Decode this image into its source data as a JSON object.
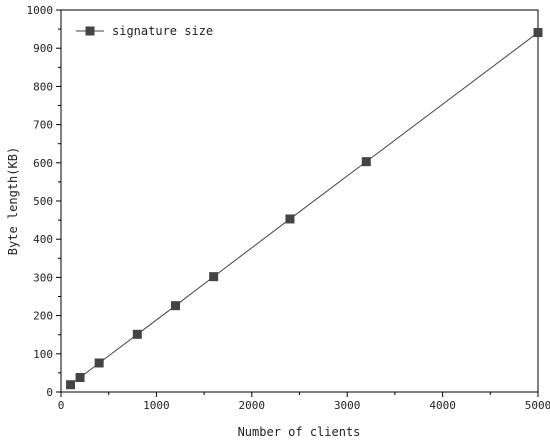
{
  "chart_data": {
    "type": "line",
    "title": "",
    "xlabel": "Number of clients",
    "ylabel": "Byte length(KB)",
    "xlim": [
      0,
      5000
    ],
    "ylim": [
      0,
      1000
    ],
    "x_ticks": [
      0,
      1000,
      2000,
      3000,
      4000,
      5000
    ],
    "y_ticks": [
      0,
      100,
      200,
      300,
      400,
      500,
      600,
      700,
      800,
      900,
      1000
    ],
    "x_tick_labels": [
      "0",
      "1000",
      "2000",
      "3000",
      "4000",
      "5000"
    ],
    "y_tick_labels": [
      "0",
      "100",
      "200",
      "300",
      "400",
      "500",
      "600",
      "700",
      "800",
      "900",
      "1000"
    ],
    "grid": false,
    "legend_position": "top-left",
    "series": [
      {
        "name": "signature size",
        "marker": "square",
        "color": "#444444",
        "x": [
          100,
          200,
          400,
          800,
          1200,
          1600,
          2400,
          3200,
          5000
        ],
        "y": [
          19,
          38,
          76,
          151,
          226,
          302,
          453,
          603,
          941
        ]
      }
    ]
  }
}
